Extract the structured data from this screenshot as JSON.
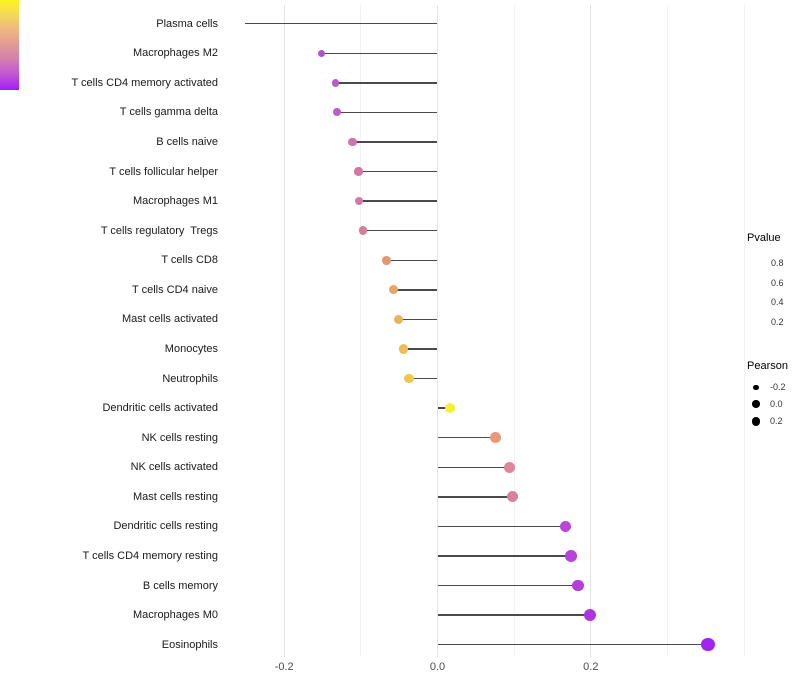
{
  "chart_data": {
    "type": "scatter",
    "subtype": "lollipop",
    "title": "",
    "xlabel": "",
    "ylabel": "",
    "grid": true,
    "legend_position": "right",
    "background": "#ffffff",
    "stem_color": "#4a4a4a",
    "xlim": [
      -0.273,
      0.417
    ],
    "x_tick_labels": [
      "-0.2",
      "0.0",
      "0.2"
    ],
    "x_tick_values": [
      -0.2,
      0.0,
      0.2
    ],
    "x_minor_grid_values": [
      -0.1,
      0.1,
      0.3,
      0.4
    ],
    "categories": [
      "Plasma cells",
      "Macrophages M2",
      "T cells CD4 memory activated",
      "T cells gamma delta",
      "B cells naive",
      "T cells follicular helper",
      "Macrophages M1",
      "T cells regulatory  Tregs",
      "T cells CD8",
      "T cells CD4 naive",
      "Mast cells activated",
      "Monocytes",
      "Neutrophils",
      "Dendritic cells activated",
      "NK cells resting",
      "NK cells activated",
      "Mast cells resting",
      "Dendritic cells resting",
      "T cells CD4 memory resting",
      "B cells memory",
      "Macrophages M0",
      "Eosinophils"
    ],
    "series": [
      {
        "name": "Pearson",
        "values": [
          -0.251,
          -0.151,
          -0.133,
          -0.131,
          -0.111,
          -0.103,
          -0.102,
          -0.097,
          -0.067,
          -0.057,
          -0.051,
          -0.044,
          -0.037,
          0.016,
          0.076,
          0.094,
          0.098,
          0.167,
          0.174,
          0.183,
          0.199,
          0.353
        ]
      }
    ],
    "point_colors": [
      "#7d22cf",
      "#b251ce",
      "#ba5cc8",
      "#bc5fc6",
      "#cf74ae",
      "#d477a6",
      "#d579a2",
      "#d87e9d",
      "#e3986f",
      "#e6a468",
      "#eab15e",
      "#edbc54",
      "#f0c84b",
      "#f7ef33",
      "#e89a78",
      "#de8699",
      "#da809f",
      "#b846d8",
      "#b542da",
      "#b33edd",
      "#ae35e3",
      "#a224f0"
    ]
  },
  "legend": {
    "pvalue": {
      "title": "Pvalue",
      "tick_labels": [
        "0.8",
        "0.6",
        "0.4",
        "0.2"
      ],
      "gradient_stops": [
        "#fdf420",
        "#f4d75b",
        "#eeb77f",
        "#e29a96",
        "#d37cb0",
        "#c055d7",
        "#a21df6"
      ]
    },
    "pearson": {
      "title": "Pearson",
      "size_labels": [
        "-0.2",
        "0.0",
        "0.2"
      ],
      "dot_color": "#000000"
    }
  }
}
